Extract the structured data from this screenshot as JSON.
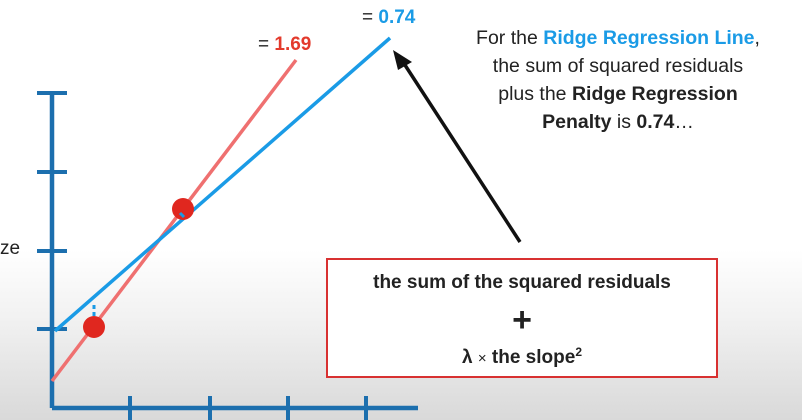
{
  "annotations": {
    "red_value_prefix": "= ",
    "red_value": "1.69",
    "blue_value_prefix": "= ",
    "blue_value": "0.74"
  },
  "explanation": {
    "part1": "For the ",
    "highlight": "Ridge Regression Line",
    "part2": ",",
    "part3": "the sum of squared residuals",
    "part4": "plus the ",
    "bold1": "Ridge Regression",
    "bold2": "Penalty",
    "part5": " is ",
    "bold3": "0.74",
    "part6": "…"
  },
  "formula": {
    "line1": "the sum of the squared residuals",
    "plus": "+",
    "lambda": "λ",
    "times": "×",
    "slope": " the slope",
    "exponent": "2"
  },
  "axis": {
    "y_label_fragment": "ze"
  },
  "colors": {
    "axis": "#1c6fae",
    "ridge_line": "#1a9be6",
    "ols_line": "#ef7070",
    "point": "#e0271f",
    "box_border": "#d83131"
  }
}
